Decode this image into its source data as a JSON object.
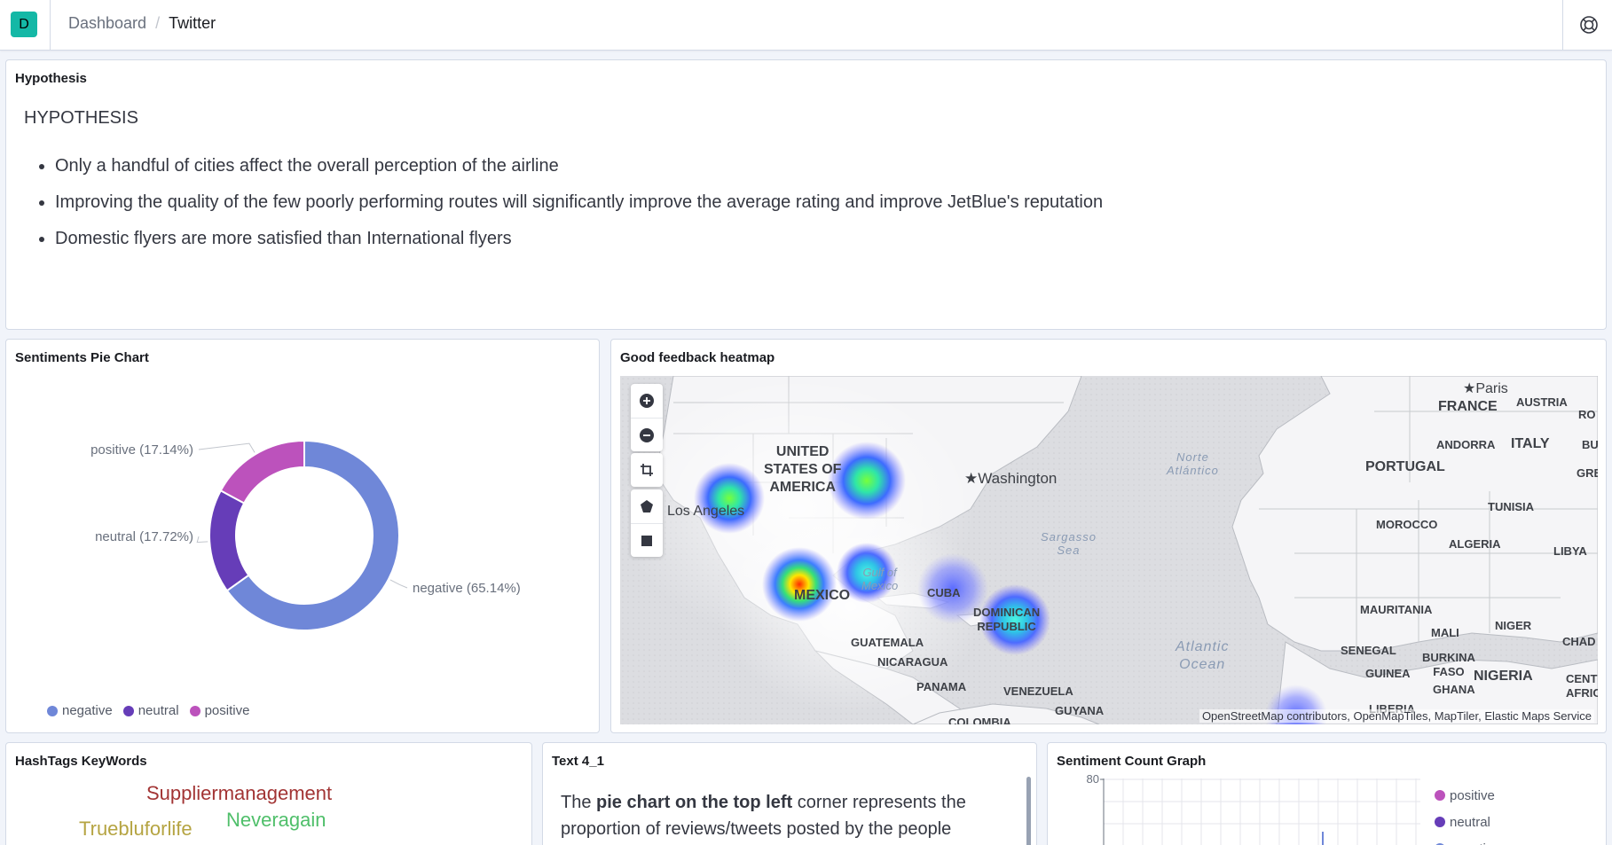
{
  "header": {
    "app_initial": "D",
    "breadcrumbs": [
      "Dashboard",
      "Twitter"
    ]
  },
  "hypothesis_panel": {
    "title": "Hypothesis",
    "heading": "HYPOTHESIS",
    "bullets": [
      "Only a handful of cities affect the overall perception of the airline",
      "Improving the quality of the few poorly performing routes will significantly improve the average rating and improve JetBlue's reputation",
      "Domestic flyers are more satisfied than International flyers"
    ]
  },
  "pie_panel": {
    "title": "Sentiments Pie Chart",
    "chart_data": {
      "type": "pie",
      "donut": true,
      "categories": [
        "negative",
        "neutral",
        "positive"
      ],
      "values": [
        65.14,
        17.72,
        17.14
      ],
      "labels": [
        "negative (65.14%)",
        "neutral (17.72%)",
        "positive (17.14%)"
      ],
      "colors": [
        "#6f87d8",
        "#663db8",
        "#bc52bc"
      ],
      "legend": [
        "negative",
        "neutral",
        "positive"
      ],
      "legend_position": "bottom-left"
    }
  },
  "heatmap_panel": {
    "title": "Good feedback heatmap",
    "controls": [
      "zoom-in-icon",
      "zoom-out-icon",
      "crop-icon",
      "polygon-icon",
      "square-icon"
    ],
    "attribution": "OpenStreetMap contributors, OpenMapTiles, MapTiler, Elastic Maps Service",
    "labels": {
      "usa": [
        "UNITED",
        "STATES OF",
        "AMERICA"
      ],
      "los_angeles": "Los Angeles",
      "washington": "★Washington",
      "mexico": "MEXICO",
      "gulf": [
        "Gulf of",
        "Mexico"
      ],
      "cuba": "CUBA",
      "dominican": [
        "DOMINICAN",
        "REPUBLIC"
      ],
      "guatemala": "GUATEMALA",
      "nicaragua": "NICARAGUA",
      "panama": "PANAMA",
      "venezuela": "VENEZUELA",
      "guyana": "GUYANA",
      "colombia": "COLOMBIA",
      "north_atlantic": [
        "Norte",
        "Atlántico"
      ],
      "sargasso": [
        "Sargasso",
        "Sea"
      ],
      "atlantic_ocean": [
        "Atlantic",
        "Ocean"
      ],
      "paris": "★Paris",
      "france": "FRANCE",
      "austria": "AUSTRIA",
      "ro": "RO",
      "andorra": "ANDORRA",
      "italy": "ITALY",
      "bu": "BU",
      "portugal": "PORTUGAL",
      "gree": "GREE",
      "tunisia": "TUNISIA",
      "morocco": "MOROCCO",
      "algeria": "ALGERIA",
      "libya": "LIBYA",
      "mauritania": "MAURITANIA",
      "mali": "MALI",
      "niger": "NIGER",
      "chad": "CHAD",
      "senegal": "SENEGAL",
      "burkina": [
        "BURKINA",
        "FASO"
      ],
      "guinea": "GUINEA",
      "ghana": "GHANA",
      "nigeria": "NIGERIA",
      "central_africa": [
        "CENTRA",
        "AFRICA"
      ],
      "liberia": "LIBERIA"
    }
  },
  "hashtags_panel": {
    "title": "HashTags KeyWords",
    "words": [
      {
        "text": "Suppliermanagement",
        "color": "#a23434"
      },
      {
        "text": "Neveragain",
        "color": "#4fbf6a"
      },
      {
        "text": "Truebluforlife",
        "color": "#b5a442"
      }
    ]
  },
  "text_panel": {
    "title": "Text 4_1",
    "body_prefix": "The ",
    "body_bold": "pie chart on the top left",
    "body_suffix": " corner represents the proportion of reviews/tweets posted by the people"
  },
  "count_panel": {
    "title": "Sentiment Count Graph",
    "chart_data": {
      "type": "bar",
      "y_tick_visible": "80",
      "legend": [
        "positive",
        "neutral",
        "negative"
      ],
      "colors": [
        "#bc52bc",
        "#663db8",
        "#6f87d8"
      ],
      "legend_position": "top-right"
    }
  }
}
